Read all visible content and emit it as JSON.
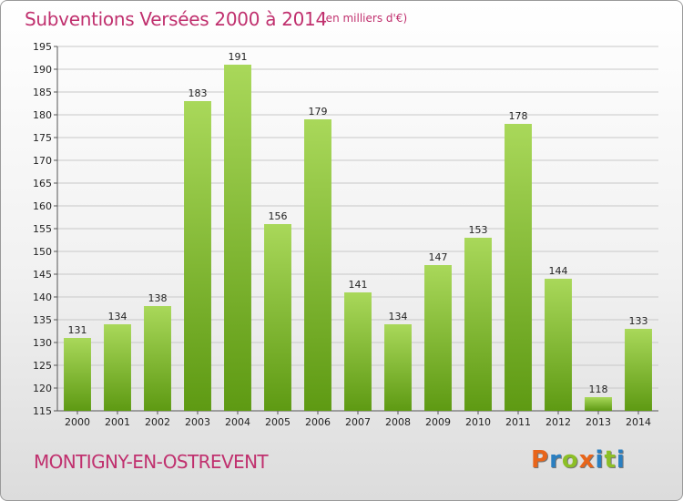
{
  "header": {
    "title": "Subventions Versées 2000 à 2014",
    "subtitle": "(en milliers d'€)"
  },
  "footer": {
    "commune": "MONTIGNY-EN-OSTREVENT",
    "logo": "Proxiti",
    "logo_colors": [
      "#e8651a",
      "#2a7fc1",
      "#8cbf26",
      "#e8651a",
      "#2a7fc1",
      "#8cbf26",
      "#2a7fc1"
    ]
  },
  "colors": {
    "title": "#c0306e",
    "bar_top": "#a9d85a",
    "bar_bottom": "#5e9a13",
    "grid": "#c8c8c8"
  },
  "chart_data": {
    "type": "bar",
    "title": "Subventions Versées 2000 à 2014",
    "subtitle": "(en milliers d'€)",
    "categories": [
      "2000",
      "2001",
      "2002",
      "2003",
      "2004",
      "2005",
      "2006",
      "2007",
      "2008",
      "2009",
      "2010",
      "2011",
      "2012",
      "2013",
      "2014"
    ],
    "values": [
      131,
      134,
      138,
      183,
      191,
      156,
      179,
      141,
      134,
      147,
      153,
      178,
      144,
      118,
      133
    ],
    "ylim": [
      115,
      195
    ],
    "yticks": [
      115,
      120,
      125,
      130,
      135,
      140,
      145,
      150,
      155,
      160,
      165,
      170,
      175,
      180,
      185,
      190,
      195
    ],
    "grid": true,
    "data_labels": true
  }
}
